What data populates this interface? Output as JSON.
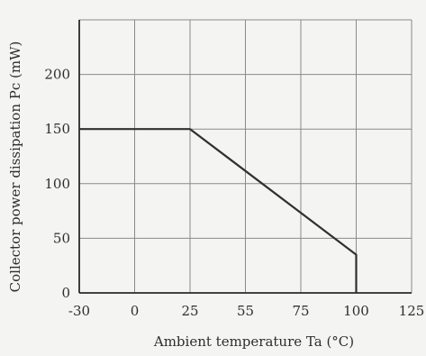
{
  "chart_data": {
    "type": "line",
    "title": "",
    "xlabel": "Ambient temperature Ta (°C)",
    "ylabel": "Collector power dissipation Pc (mW)",
    "x_ticks": [
      "-30",
      "0",
      "25",
      "55",
      "75",
      "100",
      "125"
    ],
    "y_ticks": [
      "0",
      "50",
      "100",
      "150",
      "200"
    ],
    "grid": true,
    "series": [
      {
        "x": [
          "-30",
          "25",
          "100",
          "100"
        ],
        "y": [
          150,
          150,
          35,
          0
        ]
      }
    ],
    "colors": {
      "line": "#303030",
      "grid": "#8a8a8a",
      "axes": "#2a2a2a",
      "background": "#f4f4f2"
    }
  }
}
